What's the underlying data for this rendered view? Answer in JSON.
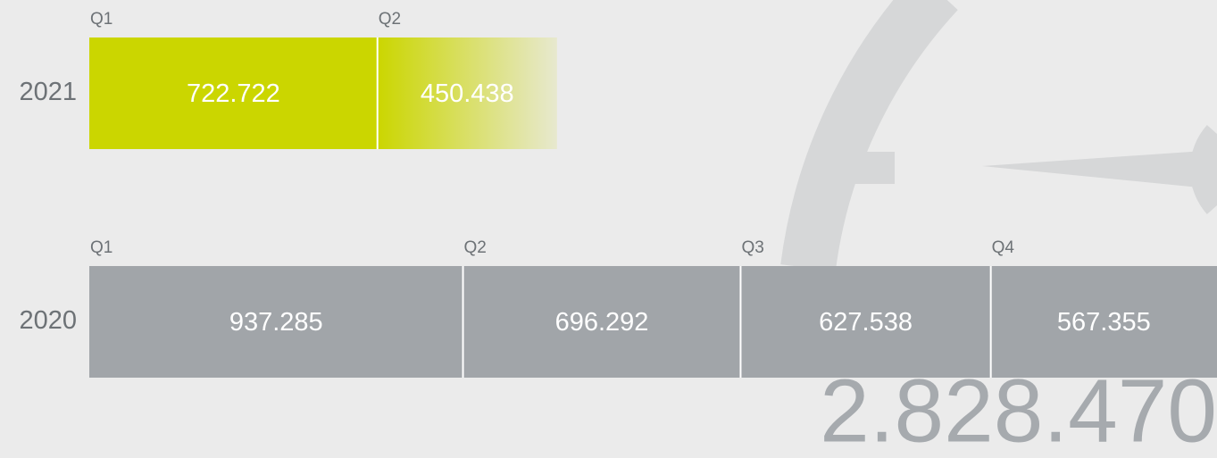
{
  "chart_data": {
    "type": "bar",
    "stacked": true,
    "orientation": "horizontal",
    "xlim": [
      0,
      2828470
    ],
    "rows": [
      {
        "label": "2021",
        "color": "#cbd600",
        "fade": true,
        "segments": [
          {
            "name": "Q1",
            "value": 722722,
            "value_label": "722.722"
          },
          {
            "name": "Q2",
            "value": 450438,
            "value_label": "450.438"
          }
        ]
      },
      {
        "label": "2020",
        "color": "#a1a5a9",
        "fade": false,
        "segments": [
          {
            "name": "Q1",
            "value": 937285,
            "value_label": "937.285"
          },
          {
            "name": "Q2",
            "value": 696292,
            "value_label": "696.292"
          },
          {
            "name": "Q3",
            "value": 627538,
            "value_label": "627.538"
          },
          {
            "name": "Q4",
            "value": 567355,
            "value_label": "567.355"
          }
        ]
      }
    ],
    "annotation": "2.828.470"
  }
}
